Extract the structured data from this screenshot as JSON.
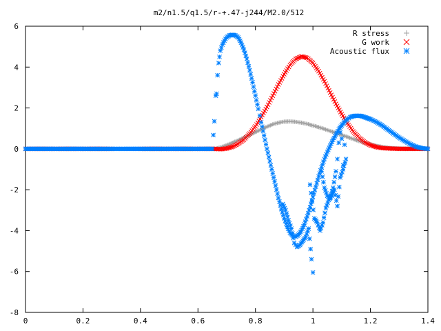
{
  "chart_data": {
    "type": "scatter",
    "title": "m2/n1.5/q1.5/r-+.47-j244/M2.0/512",
    "xlabel": "",
    "ylabel": "",
    "xlim": [
      0,
      1.4
    ],
    "ylim": [
      -8,
      6
    ],
    "x_ticks": [
      "0",
      "0.2",
      "0.4",
      "0.6",
      "0.8",
      "1",
      "1.2",
      "1.4"
    ],
    "y_ticks": [
      "-8",
      "-6",
      "-4",
      "-2",
      "0",
      "2",
      "4",
      "6"
    ],
    "legend_position": "top-right",
    "grid": false,
    "series": [
      {
        "name": "R stress",
        "marker": "plus",
        "color": "#a0a0a0",
        "points": [
          [
            0.0,
            0
          ],
          [
            0.1,
            0
          ],
          [
            0.2,
            0
          ],
          [
            0.3,
            0
          ],
          [
            0.4,
            0
          ],
          [
            0.5,
            0
          ],
          [
            0.6,
            0
          ],
          [
            0.66,
            0
          ],
          [
            0.68,
            0.08
          ],
          [
            0.7,
            0.18
          ],
          [
            0.72,
            0.3
          ],
          [
            0.74,
            0.42
          ],
          [
            0.76,
            0.55
          ],
          [
            0.78,
            0.68
          ],
          [
            0.8,
            0.82
          ],
          [
            0.82,
            0.95
          ],
          [
            0.84,
            1.08
          ],
          [
            0.86,
            1.2
          ],
          [
            0.88,
            1.28
          ],
          [
            0.9,
            1.33
          ],
          [
            0.92,
            1.34
          ],
          [
            0.94,
            1.32
          ],
          [
            0.96,
            1.28
          ],
          [
            0.98,
            1.22
          ],
          [
            1.0,
            1.14
          ],
          [
            1.02,
            1.06
          ],
          [
            1.04,
            0.97
          ],
          [
            1.06,
            0.87
          ],
          [
            1.08,
            0.78
          ],
          [
            1.1,
            0.68
          ],
          [
            1.12,
            0.58
          ],
          [
            1.14,
            0.48
          ],
          [
            1.16,
            0.38
          ],
          [
            1.18,
            0.3
          ],
          [
            1.2,
            0.22
          ],
          [
            1.22,
            0.15
          ],
          [
            1.24,
            0.1
          ],
          [
            1.26,
            0.06
          ],
          [
            1.28,
            0.03
          ],
          [
            1.3,
            0.02
          ],
          [
            1.32,
            0.01
          ],
          [
            1.34,
            0
          ],
          [
            1.36,
            0
          ],
          [
            1.38,
            0
          ],
          [
            1.4,
            0
          ]
        ]
      },
      {
        "name": "G work",
        "marker": "cross",
        "color": "#ff0000",
        "points": [
          [
            0.0,
            0
          ],
          [
            0.1,
            0
          ],
          [
            0.2,
            0
          ],
          [
            0.3,
            0
          ],
          [
            0.4,
            0
          ],
          [
            0.5,
            0
          ],
          [
            0.6,
            0
          ],
          [
            0.66,
            0
          ],
          [
            0.68,
            -0.02
          ],
          [
            0.7,
            0.02
          ],
          [
            0.72,
            0.1
          ],
          [
            0.74,
            0.25
          ],
          [
            0.76,
            0.45
          ],
          [
            0.78,
            0.75
          ],
          [
            0.8,
            1.1
          ],
          [
            0.82,
            1.55
          ],
          [
            0.84,
            2.05
          ],
          [
            0.86,
            2.6
          ],
          [
            0.88,
            3.15
          ],
          [
            0.9,
            3.65
          ],
          [
            0.92,
            4.1
          ],
          [
            0.94,
            4.4
          ],
          [
            0.96,
            4.52
          ],
          [
            0.98,
            4.45
          ],
          [
            1.0,
            4.2
          ],
          [
            1.02,
            3.8
          ],
          [
            1.04,
            3.3
          ],
          [
            1.06,
            2.75
          ],
          [
            1.08,
            2.2
          ],
          [
            1.1,
            1.7
          ],
          [
            1.12,
            1.25
          ],
          [
            1.14,
            0.85
          ],
          [
            1.16,
            0.55
          ],
          [
            1.18,
            0.32
          ],
          [
            1.2,
            0.18
          ],
          [
            1.22,
            0.09
          ],
          [
            1.24,
            0.04
          ],
          [
            1.26,
            0.02
          ],
          [
            1.28,
            0.01
          ],
          [
            1.3,
            0
          ],
          [
            1.32,
            0
          ],
          [
            1.34,
            0
          ],
          [
            1.36,
            0
          ],
          [
            1.38,
            0
          ],
          [
            1.4,
            0
          ]
        ]
      },
      {
        "name": "Acoustic flux",
        "marker": "star",
        "color": "#0080ff",
        "points": [
          [
            0.0,
            0
          ],
          [
            0.05,
            0
          ],
          [
            0.1,
            0
          ],
          [
            0.15,
            0
          ],
          [
            0.2,
            0
          ],
          [
            0.25,
            0
          ],
          [
            0.3,
            0
          ],
          [
            0.35,
            0
          ],
          [
            0.4,
            0
          ],
          [
            0.45,
            0
          ],
          [
            0.5,
            0
          ],
          [
            0.55,
            0
          ],
          [
            0.6,
            0
          ],
          [
            0.65,
            0
          ],
          [
            0.657,
            1.35
          ],
          [
            0.662,
            2.6
          ],
          [
            0.665,
            2.7
          ],
          [
            0.668,
            3.6
          ],
          [
            0.672,
            4.2
          ],
          [
            0.678,
            4.8
          ],
          [
            0.685,
            5.1
          ],
          [
            0.692,
            5.3
          ],
          [
            0.7,
            5.45
          ],
          [
            0.71,
            5.55
          ],
          [
            0.72,
            5.58
          ],
          [
            0.73,
            5.55
          ],
          [
            0.74,
            5.45
          ],
          [
            0.75,
            5.2
          ],
          [
            0.76,
            4.85
          ],
          [
            0.77,
            4.4
          ],
          [
            0.78,
            3.85
          ],
          [
            0.79,
            3.25
          ],
          [
            0.8,
            2.6
          ],
          [
            0.81,
            1.95
          ],
          [
            0.82,
            1.3
          ],
          [
            0.83,
            0.65
          ],
          [
            0.84,
            0.0
          ],
          [
            0.85,
            -0.6
          ],
          [
            0.86,
            -1.2
          ],
          [
            0.87,
            -1.8
          ],
          [
            0.88,
            -2.4
          ],
          [
            0.89,
            -2.95
          ],
          [
            0.9,
            -3.4
          ],
          [
            0.91,
            -3.8
          ],
          [
            0.92,
            -4.1
          ],
          [
            0.93,
            -4.25
          ],
          [
            0.94,
            -4.3
          ],
          [
            0.95,
            -4.2
          ],
          [
            0.96,
            -4.0
          ],
          [
            0.97,
            -3.7
          ],
          [
            0.98,
            -3.3
          ],
          [
            0.99,
            -2.85
          ],
          [
            1.0,
            -2.35
          ],
          [
            1.01,
            -1.85
          ],
          [
            1.02,
            -1.35
          ],
          [
            1.03,
            -0.9
          ],
          [
            1.04,
            -0.5
          ],
          [
            1.05,
            -0.15
          ],
          [
            1.06,
            0.15
          ],
          [
            1.07,
            0.45
          ],
          [
            1.08,
            0.7
          ],
          [
            1.09,
            0.95
          ],
          [
            1.1,
            1.15
          ],
          [
            1.11,
            1.32
          ],
          [
            1.12,
            1.45
          ],
          [
            1.13,
            1.55
          ],
          [
            1.14,
            1.6
          ],
          [
            1.15,
            1.62
          ],
          [
            1.16,
            1.62
          ],
          [
            1.17,
            1.6
          ],
          [
            1.18,
            1.55
          ],
          [
            1.19,
            1.5
          ],
          [
            1.2,
            1.45
          ],
          [
            1.22,
            1.32
          ],
          [
            1.24,
            1.15
          ],
          [
            1.26,
            0.95
          ],
          [
            1.28,
            0.75
          ],
          [
            1.3,
            0.55
          ],
          [
            1.32,
            0.38
          ],
          [
            1.34,
            0.22
          ],
          [
            1.36,
            0.1
          ],
          [
            1.38,
            0.03
          ],
          [
            1.4,
            0
          ],
          [
            0.895,
            -2.7
          ],
          [
            0.905,
            -3.0
          ],
          [
            0.915,
            -3.5
          ],
          [
            0.925,
            -3.9
          ],
          [
            0.935,
            -4.6
          ],
          [
            0.945,
            -4.8
          ],
          [
            0.955,
            -4.7
          ],
          [
            0.965,
            -4.5
          ],
          [
            0.975,
            -4.3
          ],
          [
            0.985,
            -3.9
          ],
          [
            0.995,
            -5.4
          ],
          [
            1.0,
            -6.05
          ],
          [
            0.99,
            -1.75
          ],
          [
            1.005,
            -3.4
          ],
          [
            1.015,
            -3.6
          ],
          [
            1.025,
            -4.0
          ],
          [
            1.035,
            -3.6
          ],
          [
            1.045,
            -2.9
          ],
          [
            1.055,
            -2.5
          ],
          [
            1.065,
            -2.3
          ],
          [
            1.075,
            -2.0
          ],
          [
            1.085,
            -2.8
          ],
          [
            1.095,
            -1.4
          ],
          [
            1.105,
            -1.0
          ],
          [
            1.115,
            -0.5
          ],
          [
            1.03,
            -1.1
          ],
          [
            1.04,
            -1.9
          ],
          [
            1.05,
            -2.3
          ],
          [
            1.06,
            -2.4
          ],
          [
            1.07,
            -1.9
          ],
          [
            1.08,
            -1.1
          ],
          [
            1.085,
            -0.5
          ],
          [
            1.09,
            0.3
          ],
          [
            1.095,
            0.8
          ],
          [
            1.1,
            0.5
          ],
          [
            1.105,
            -0.8
          ],
          [
            1.11,
            0.2
          ]
        ]
      }
    ]
  }
}
